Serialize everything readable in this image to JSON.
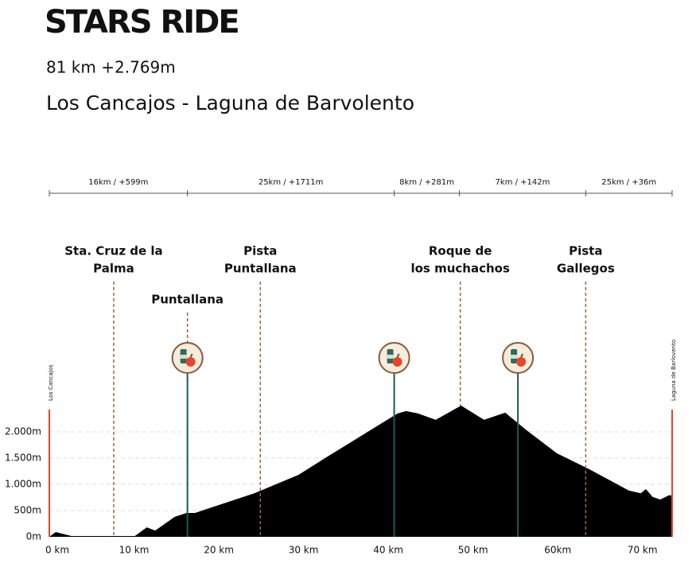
{
  "chart_data": {
    "type": "area",
    "title": "STARS RIDE",
    "subtitle": "81 km  +2.769m",
    "route": "Los Cancajos - Laguna de Barvolento",
    "start_label": "Los Cancajos",
    "end_label": "Laguna de Barlovento",
    "color": "#000000",
    "grid": true,
    "xlim": [
      0,
      73.5
    ],
    "ylim": [
      0,
      2500
    ],
    "xticks": [
      {
        "value": 0,
        "label": "0 km"
      },
      {
        "value": 10,
        "label": "10 km"
      },
      {
        "value": 20,
        "label": "20 km"
      },
      {
        "value": 30,
        "label": "30 km"
      },
      {
        "value": 40,
        "label": "40 km"
      },
      {
        "value": 50,
        "label": "50 km"
      },
      {
        "value": 60,
        "label": "60km"
      },
      {
        "value": 70,
        "label": "70 km"
      }
    ],
    "yticks": [
      {
        "value": 0,
        "label": "0m"
      },
      {
        "value": 500,
        "label": "500m"
      },
      {
        "value": 1000,
        "label": "1.000m"
      },
      {
        "value": 1500,
        "label": "1.500m"
      },
      {
        "value": 2000,
        "label": "2.000m"
      }
    ],
    "x": [
      0,
      0.75,
      2.6,
      10.1,
      11.5,
      12.5,
      14.8,
      16.2,
      17.2,
      24.2,
      29.4,
      32.7,
      41.1,
      42.1,
      43.5,
      45.6,
      48.6,
      51.3,
      53.8,
      56.2,
      59.9,
      63.7,
      68.4,
      69.8,
      70.4,
      71.2,
      72.1,
      73.1,
      73.5
    ],
    "values": [
      0,
      90,
      15,
      15,
      180,
      120,
      380,
      455,
      455,
      830,
      1180,
      1515,
      2350,
      2395,
      2350,
      2230,
      2500,
      2230,
      2365,
      2045,
      1590,
      1290,
      880,
      830,
      910,
      760,
      710,
      790,
      790
    ],
    "segments": [
      {
        "label": "16km  / +599m",
        "from": 0,
        "to": 16.3
      },
      {
        "label": "25km / +1711m",
        "from": 16.3,
        "to": 40.7
      },
      {
        "label": "8km / +281m",
        "from": 40.7,
        "to": 48.4
      },
      {
        "label": "7km / +142m",
        "from": 48.4,
        "to": 63.3
      },
      {
        "label": "25km / +36m",
        "from": 63.3,
        "to": 73.5
      }
    ],
    "annotations": [
      {
        "lines": [
          "Sta. Cruz de la",
          "Palma"
        ],
        "x": 7.6,
        "aid": false
      },
      {
        "lines": [
          "Puntallana"
        ],
        "x": 16.3,
        "aid": true
      },
      {
        "lines": [
          "Pista",
          "Puntallana"
        ],
        "x": 24.9,
        "aid": false
      },
      {
        "lines": [
          "Roque de",
          "los muchachos"
        ],
        "x": 48.5,
        "aid": false
      },
      {
        "lines": [
          "Pista",
          "Gallegos"
        ],
        "x": 63.3,
        "aid": false
      }
    ],
    "aid_stations": [
      40.7,
      55.3
    ]
  }
}
